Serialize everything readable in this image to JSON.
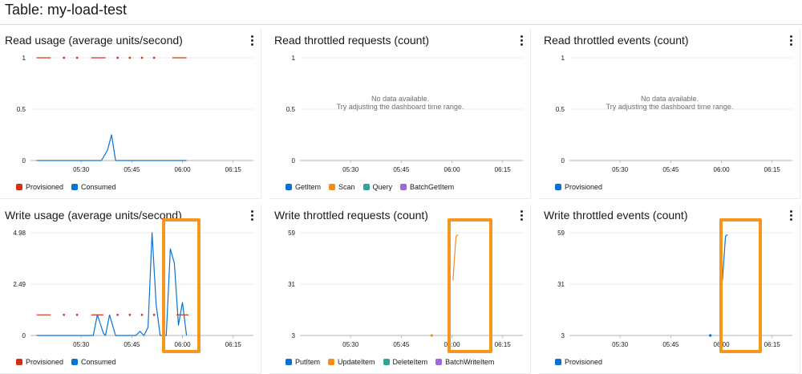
{
  "page": {
    "title": "Table: my-load-test"
  },
  "colors": {
    "provisioned": "#d13212",
    "consumed": "#0972d3",
    "orange": "#f38e1a",
    "green": "#2ea597",
    "purple": "#9d6bd6",
    "highlight": "#f5961f"
  },
  "chart_data": [
    {
      "id": "read-usage",
      "type": "line",
      "title": "Read usage (average units/second)",
      "x_ticks": [
        "05:30",
        "05:45",
        "06:00",
        "06:15"
      ],
      "y_ticks": [
        "0",
        "0.5",
        "1"
      ],
      "xlim": [
        5.25,
        6.35
      ],
      "ylim": [
        0,
        1
      ],
      "no_data": "",
      "no_data_hint": "",
      "series": [
        {
          "name": "Provisioned",
          "color": "#d13212",
          "style": "dotted",
          "segments": [
            [
              [
                5.28,
                1
              ],
              [
                5.35,
                1
              ]
            ],
            [
              [
                5.415,
                1
              ],
              [
                5.42,
                1
              ]
            ],
            [
              [
                5.48,
                1
              ],
              [
                5.485,
                1
              ]
            ],
            [
              [
                5.55,
                1
              ],
              [
                5.62,
                1
              ]
            ],
            [
              [
                5.68,
                1
              ],
              [
                5.685,
                1
              ]
            ],
            [
              [
                5.74,
                1
              ],
              [
                5.745,
                1
              ]
            ],
            [
              [
                5.8,
                1
              ],
              [
                5.805,
                1
              ]
            ],
            [
              [
                5.86,
                1
              ],
              [
                5.865,
                1
              ]
            ],
            [
              [
                5.95,
                1
              ],
              [
                6.02,
                1
              ]
            ]
          ]
        },
        {
          "name": "Consumed",
          "color": "#0972d3",
          "style": "solid",
          "segments": [
            [
              [
                5.28,
                0
              ],
              [
                5.6,
                0
              ],
              [
                5.63,
                0.1
              ],
              [
                5.65,
                0.25
              ],
              [
                5.67,
                0
              ],
              [
                6.02,
                0
              ]
            ]
          ]
        }
      ],
      "legend": [
        {
          "label": "Provisioned",
          "color": "#d13212"
        },
        {
          "label": "Consumed",
          "color": "#0972d3"
        }
      ]
    },
    {
      "id": "read-throttled-requests",
      "type": "line",
      "title": "Read throttled requests (count)",
      "x_ticks": [
        "05:30",
        "05:45",
        "06:00",
        "06:15"
      ],
      "y_ticks": [
        "0",
        "0.5",
        "1"
      ],
      "xlim": [
        5.25,
        6.35
      ],
      "ylim": [
        0,
        1
      ],
      "no_data": "No data available.",
      "no_data_hint": "Try adjusting the dashboard time range.",
      "series": [],
      "legend": [
        {
          "label": "GetItem",
          "color": "#0972d3"
        },
        {
          "label": "Scan",
          "color": "#f38e1a"
        },
        {
          "label": "Query",
          "color": "#2ea597"
        },
        {
          "label": "BatchGetItem",
          "color": "#9d6bd6"
        }
      ]
    },
    {
      "id": "read-throttled-events",
      "type": "line",
      "title": "Read throttled events (count)",
      "x_ticks": [
        "05:30",
        "05:45",
        "06:00",
        "06:15"
      ],
      "y_ticks": [
        "0",
        "0.5",
        "1"
      ],
      "xlim": [
        5.25,
        6.35
      ],
      "ylim": [
        0,
        1
      ],
      "no_data": "No data available.",
      "no_data_hint": "Try adjusting the dashboard time range.",
      "series": [],
      "legend": [
        {
          "label": "Provisioned",
          "color": "#0972d3"
        }
      ]
    },
    {
      "id": "write-usage",
      "type": "line",
      "title": "Write usage (average units/second)",
      "x_ticks": [
        "05:30",
        "05:45",
        "06:00",
        "06:15"
      ],
      "y_ticks": [
        "0",
        "2.49",
        "4.98"
      ],
      "xlim": [
        5.25,
        6.35
      ],
      "ylim": [
        0,
        4.98
      ],
      "no_data": "",
      "no_data_hint": "",
      "series": [
        {
          "name": "Provisioned",
          "color": "#d13212",
          "style": "dotted",
          "segments": [
            [
              [
                5.28,
                1
              ],
              [
                5.35,
                1
              ]
            ],
            [
              [
                5.415,
                1
              ],
              [
                5.42,
                1
              ]
            ],
            [
              [
                5.48,
                1
              ],
              [
                5.485,
                1
              ]
            ],
            [
              [
                5.55,
                1
              ],
              [
                5.61,
                1
              ]
            ],
            [
              [
                5.68,
                1
              ],
              [
                5.685,
                1
              ]
            ],
            [
              [
                5.74,
                1
              ],
              [
                5.745,
                1
              ]
            ],
            [
              [
                5.8,
                1
              ],
              [
                5.805,
                1
              ]
            ],
            [
              [
                5.86,
                1
              ],
              [
                5.865,
                1
              ]
            ],
            [
              [
                5.97,
                1
              ],
              [
                6.03,
                1
              ]
            ]
          ]
        },
        {
          "name": "Consumed",
          "color": "#0972d3",
          "style": "solid",
          "segments": [
            [
              [
                5.28,
                0
              ],
              [
                5.56,
                0
              ],
              [
                5.58,
                1
              ],
              [
                5.61,
                0.1
              ],
              [
                5.62,
                0
              ],
              [
                5.64,
                1
              ],
              [
                5.67,
                0
              ],
              [
                5.77,
                0
              ],
              [
                5.79,
                0.2
              ],
              [
                5.81,
                0
              ],
              [
                5.83,
                0.4
              ],
              [
                5.85,
                4.98
              ],
              [
                5.87,
                1.5
              ],
              [
                5.89,
                0
              ],
              [
                5.92,
                0
              ],
              [
                5.94,
                4.2
              ],
              [
                5.96,
                3.5
              ],
              [
                5.98,
                0.5
              ],
              [
                6.0,
                1.6
              ],
              [
                6.02,
                0
              ]
            ]
          ]
        }
      ],
      "highlight": {
        "x0": 5.9,
        "x1": 6.09
      },
      "legend": [
        {
          "label": "Provisioned",
          "color": "#d13212"
        },
        {
          "label": "Consumed",
          "color": "#0972d3"
        }
      ]
    },
    {
      "id": "write-throttled-requests",
      "type": "line",
      "title": "Write throttled requests (count)",
      "x_ticks": [
        "05:30",
        "05:45",
        "06:00",
        "06:15"
      ],
      "y_ticks": [
        "3",
        "31",
        "59"
      ],
      "xlim": [
        5.25,
        6.35
      ],
      "ylim": [
        3,
        59
      ],
      "no_data": "",
      "no_data_hint": "",
      "series": [
        {
          "name": "UpdateItem",
          "color": "#f38e1a",
          "style": "solid",
          "segments": [
            [
              [
                6.005,
                33
              ],
              [
                6.02,
                57
              ],
              [
                6.03,
                58
              ]
            ]
          ]
        },
        {
          "name": "UpdateItem-point",
          "color": "#f38e1a",
          "style": "point",
          "segments": [
            [
              [
                5.9,
                3
              ]
            ]
          ]
        }
      ],
      "highlight": {
        "x0": 5.98,
        "x1": 6.2
      },
      "legend": [
        {
          "label": "PutItem",
          "color": "#0972d3"
        },
        {
          "label": "UpdateItem",
          "color": "#f38e1a"
        },
        {
          "label": "DeleteItem",
          "color": "#2ea597"
        },
        {
          "label": "BatchWriteItem",
          "color": "#9d6bd6"
        }
      ]
    },
    {
      "id": "write-throttled-events",
      "type": "line",
      "title": "Write throttled events (count)",
      "x_ticks": [
        "05:30",
        "05:45",
        "06:00",
        "06:15"
      ],
      "y_ticks": [
        "3",
        "31",
        "59"
      ],
      "xlim": [
        5.25,
        6.35
      ],
      "ylim": [
        3,
        59
      ],
      "no_data": "",
      "no_data_hint": "",
      "series": [
        {
          "name": "Provisioned",
          "color": "#0972d3",
          "style": "solid",
          "segments": [
            [
              [
                6.005,
                33
              ],
              [
                6.02,
                57
              ],
              [
                6.03,
                58
              ]
            ]
          ]
        },
        {
          "name": "Provisioned-point",
          "color": "#0972d3",
          "style": "point",
          "segments": [
            [
              [
                5.945,
                3
              ]
            ]
          ]
        }
      ],
      "highlight": {
        "x0": 5.99,
        "x1": 6.2
      },
      "legend": [
        {
          "label": "Provisioned",
          "color": "#0972d3"
        }
      ]
    }
  ]
}
